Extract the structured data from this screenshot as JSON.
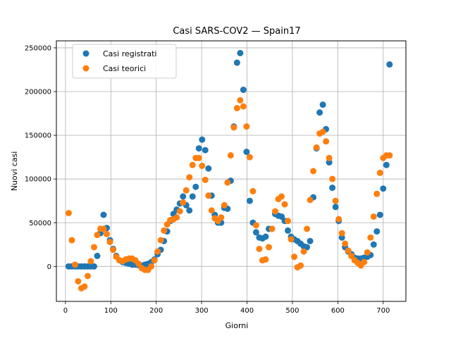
{
  "chart_data": {
    "type": "scatter",
    "title": "Casi SARS-COV2 — Spain17",
    "xlabel": "Giorni",
    "ylabel": "Nuovi casi",
    "xlim": [
      -20,
      750
    ],
    "ylim": [
      -40000,
      258000
    ],
    "x_ticks": [
      0,
      100,
      200,
      300,
      400,
      500,
      600,
      700
    ],
    "y_ticks": [
      0,
      50000,
      100000,
      150000,
      200000,
      250000
    ],
    "grid": true,
    "legend_position": "top-left",
    "series": [
      {
        "name": "Casi registrati",
        "color": "#1f77b4",
        "x": [
          7,
          14,
          21,
          28,
          35,
          42,
          49,
          56,
          63,
          70,
          77,
          84,
          91,
          98,
          105,
          112,
          119,
          126,
          133,
          140,
          147,
          154,
          161,
          168,
          175,
          182,
          189,
          196,
          203,
          210,
          217,
          224,
          231,
          238,
          245,
          252,
          259,
          266,
          273,
          280,
          287,
          294,
          301,
          308,
          315,
          322,
          329,
          336,
          343,
          350,
          357,
          364,
          371,
          378,
          385,
          392,
          399,
          406,
          413,
          420,
          427,
          434,
          441,
          448,
          455,
          462,
          469,
          476,
          483,
          490,
          497,
          504,
          511,
          518,
          525,
          532,
          539,
          546,
          553,
          560,
          567,
          574,
          581,
          588,
          595,
          602,
          609,
          616,
          623,
          630,
          637,
          644,
          651,
          658,
          665,
          672,
          679,
          686,
          693,
          700,
          707,
          714
        ],
        "y": [
          0,
          0,
          0,
          0,
          0,
          0,
          0,
          0,
          0,
          12000,
          38000,
          59000,
          44000,
          30000,
          20000,
          12000,
          7000,
          5000,
          4000,
          3000,
          2000,
          2000,
          1500,
          1000,
          2000,
          3000,
          5000,
          8000,
          14000,
          19000,
          29000,
          40000,
          52000,
          60000,
          65000,
          72000,
          80000,
          70000,
          64000,
          80000,
          91000,
          135000,
          145000,
          133000,
          112000,
          81000,
          59000,
          50000,
          50000,
          67000,
          66000,
          98000,
          160000,
          233000,
          244000,
          202000,
          131000,
          75000,
          50000,
          39000,
          33000,
          32000,
          34000,
          43000,
          43000,
          60000,
          58000,
          57000,
          52000,
          41000,
          34000,
          31000,
          29000,
          26000,
          23000,
          22000,
          29000,
          79000,
          135000,
          176000,
          185000,
          157000,
          119000,
          90000,
          68000,
          52000,
          33000,
          22000,
          17000,
          14000,
          10000,
          9000,
          9000,
          10000,
          11000,
          13000,
          25000,
          40000,
          59000,
          89000,
          116000,
          231000
        ]
      },
      {
        "name": "Casi teorici",
        "color": "#ff7f0e",
        "x": [
          7,
          14,
          21,
          28,
          35,
          42,
          49,
          56,
          63,
          70,
          77,
          84,
          91,
          98,
          105,
          112,
          119,
          126,
          133,
          140,
          147,
          154,
          161,
          168,
          175,
          182,
          189,
          196,
          203,
          210,
          217,
          224,
          231,
          238,
          245,
          252,
          259,
          266,
          273,
          280,
          287,
          294,
          301,
          308,
          315,
          322,
          329,
          336,
          343,
          350,
          357,
          364,
          371,
          378,
          385,
          392,
          399,
          406,
          413,
          420,
          427,
          434,
          441,
          448,
          455,
          462,
          469,
          476,
          483,
          490,
          497,
          504,
          511,
          518,
          525,
          532,
          539,
          546,
          553,
          560,
          567,
          574,
          581,
          588,
          595,
          602,
          609,
          616,
          623,
          630,
          637,
          644,
          651,
          658,
          665,
          672,
          679,
          686,
          693,
          700,
          707,
          714
        ],
        "y": [
          61000,
          30000,
          2000,
          -17000,
          -25000,
          -23000,
          -11000,
          6000,
          22000,
          36000,
          43000,
          43000,
          37000,
          28000,
          19000,
          11000,
          7000,
          6000,
          8000,
          9000,
          9000,
          7000,
          3000,
          -2000,
          -4000,
          -4000,
          0,
          7000,
          17000,
          30000,
          41000,
          48000,
          53000,
          54000,
          56000,
          63000,
          73000,
          87000,
          102000,
          116000,
          124000,
          124000,
          115000,
          99000,
          81000,
          64000,
          55000,
          52000,
          56000,
          70000,
          96000,
          127000,
          159000,
          181000,
          190000,
          183000,
          160000,
          125000,
          86000,
          47000,
          20000,
          7000,
          8000,
          22000,
          43000,
          63000,
          77000,
          80000,
          71000,
          52000,
          31000,
          11000,
          -1000,
          1000,
          17000,
          43000,
          76000,
          109000,
          136000,
          152000,
          154000,
          143000,
          124000,
          100000,
          75000,
          54000,
          38000,
          26000,
          18000,
          12000,
          7000,
          4000,
          1000,
          5000,
          16000,
          33000,
          57000,
          83000,
          107000,
          124000,
          127000,
          127000
        ]
      }
    ]
  }
}
